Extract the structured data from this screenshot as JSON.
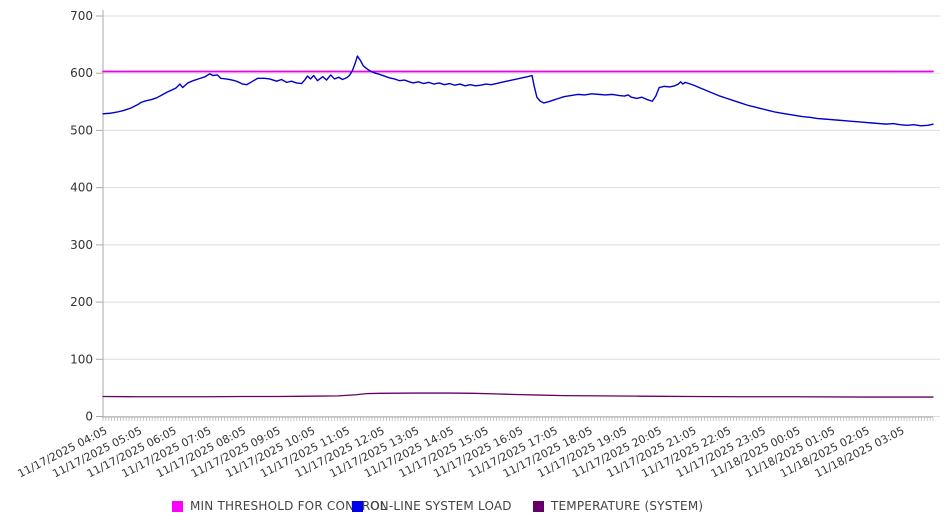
{
  "chart_data": {
    "type": "line",
    "title": "",
    "xlabel": "",
    "ylabel": "",
    "ylim": [
      0,
      700
    ],
    "y_ticks": [
      0,
      100,
      200,
      300,
      400,
      500,
      600,
      700
    ],
    "grid": "horizontal",
    "legend_position": "bottom",
    "x_tick_labels": [
      "11/17/2025 04:05",
      "11/17/2025 05:05",
      "11/17/2025 06:05",
      "11/17/2025 07:05",
      "11/17/2025 08:05",
      "11/17/2025 09:05",
      "11/17/2025 10:05",
      "11/17/2025 11:05",
      "11/17/2025 12:05",
      "11/17/2025 13:05",
      "11/17/2025 14:05",
      "11/17/2025 15:05",
      "11/17/2025 16:05",
      "11/17/2025 17:05",
      "11/17/2025 18:05",
      "11/17/2025 19:05",
      "11/17/2025 20:05",
      "11/17/2025 21:05",
      "11/17/2025 22:05",
      "11/17/2025 23:05",
      "11/18/2025 00:05",
      "11/18/2025 01:05",
      "11/18/2025 02:05",
      "11/18/2025 03:05"
    ],
    "x_unit": "hours since 11/17/2025 04:05",
    "series": [
      {
        "name": "MIN THRESHOLD FOR CONTROL",
        "color": "#ee00ee",
        "legend_color": "#ff00ff",
        "width": 1.8,
        "points": [
          [
            0,
            603
          ],
          [
            23.95,
            603
          ]
        ]
      },
      {
        "name": "ON-LINE SYSTEM LOAD",
        "color": "#0000cc",
        "legend_color": "#0000ee",
        "width": 1.4,
        "points": [
          [
            0.0,
            529
          ],
          [
            0.2,
            530
          ],
          [
            0.4,
            532
          ],
          [
            0.6,
            535
          ],
          [
            0.8,
            539
          ],
          [
            1.0,
            545
          ],
          [
            1.1,
            549
          ],
          [
            1.25,
            552
          ],
          [
            1.4,
            554
          ],
          [
            1.55,
            557
          ],
          [
            1.7,
            562
          ],
          [
            1.85,
            567
          ],
          [
            2.0,
            571
          ],
          [
            2.1,
            574
          ],
          [
            2.22,
            581
          ],
          [
            2.3,
            575
          ],
          [
            2.45,
            583
          ],
          [
            2.6,
            587
          ],
          [
            2.8,
            591
          ],
          [
            2.95,
            594
          ],
          [
            3.08,
            599
          ],
          [
            3.17,
            596
          ],
          [
            3.3,
            597
          ],
          [
            3.4,
            591
          ],
          [
            3.55,
            590
          ],
          [
            3.66,
            589
          ],
          [
            3.8,
            587
          ],
          [
            3.89,
            585
          ],
          [
            4.03,
            581
          ],
          [
            4.15,
            580
          ],
          [
            4.29,
            585
          ],
          [
            4.46,
            591
          ],
          [
            4.66,
            591
          ],
          [
            4.81,
            590
          ],
          [
            5.01,
            586
          ],
          [
            5.15,
            589
          ],
          [
            5.3,
            584
          ],
          [
            5.44,
            586
          ],
          [
            5.58,
            583
          ],
          [
            5.73,
            582
          ],
          [
            5.82,
            588
          ],
          [
            5.9,
            595
          ],
          [
            5.99,
            590
          ],
          [
            6.08,
            596
          ],
          [
            6.19,
            587
          ],
          [
            6.34,
            594
          ],
          [
            6.45,
            588
          ],
          [
            6.57,
            597
          ],
          [
            6.68,
            590
          ],
          [
            6.8,
            593
          ],
          [
            6.91,
            589
          ],
          [
            7.03,
            592
          ],
          [
            7.11,
            596
          ],
          [
            7.2,
            605
          ],
          [
            7.28,
            618
          ],
          [
            7.34,
            630
          ],
          [
            7.43,
            622
          ],
          [
            7.51,
            613
          ],
          [
            7.63,
            607
          ],
          [
            7.74,
            603
          ],
          [
            7.86,
            600
          ],
          [
            7.98,
            598
          ],
          [
            8.12,
            595
          ],
          [
            8.26,
            592
          ],
          [
            8.41,
            590
          ],
          [
            8.55,
            587
          ],
          [
            8.7,
            588
          ],
          [
            8.84,
            585
          ],
          [
            8.95,
            583
          ],
          [
            9.1,
            585
          ],
          [
            9.25,
            582
          ],
          [
            9.4,
            584
          ],
          [
            9.55,
            581
          ],
          [
            9.7,
            583
          ],
          [
            9.85,
            580
          ],
          [
            10.0,
            582
          ],
          [
            10.15,
            579
          ],
          [
            10.3,
            581
          ],
          [
            10.45,
            578
          ],
          [
            10.6,
            580
          ],
          [
            10.75,
            578
          ],
          [
            10.9,
            579
          ],
          [
            11.05,
            581
          ],
          [
            11.2,
            580
          ],
          [
            11.35,
            582
          ],
          [
            11.5,
            584
          ],
          [
            11.65,
            586
          ],
          [
            11.8,
            588
          ],
          [
            11.95,
            590
          ],
          [
            12.1,
            592
          ],
          [
            12.25,
            594
          ],
          [
            12.38,
            596
          ],
          [
            12.44,
            578
          ],
          [
            12.52,
            558
          ],
          [
            12.62,
            551
          ],
          [
            12.72,
            548
          ],
          [
            12.85,
            550
          ],
          [
            13.0,
            553
          ],
          [
            13.15,
            556
          ],
          [
            13.3,
            559
          ],
          [
            13.5,
            561
          ],
          [
            13.7,
            563
          ],
          [
            13.9,
            562
          ],
          [
            14.1,
            564
          ],
          [
            14.3,
            563
          ],
          [
            14.5,
            562
          ],
          [
            14.7,
            563
          ],
          [
            14.9,
            561
          ],
          [
            15.05,
            560
          ],
          [
            15.15,
            562
          ],
          [
            15.25,
            558
          ],
          [
            15.4,
            556
          ],
          [
            15.55,
            558
          ],
          [
            15.7,
            554
          ],
          [
            15.85,
            551
          ],
          [
            15.95,
            560
          ],
          [
            16.05,
            575
          ],
          [
            16.2,
            577
          ],
          [
            16.35,
            576
          ],
          [
            16.5,
            578
          ],
          [
            16.6,
            581
          ],
          [
            16.67,
            585
          ],
          [
            16.73,
            581
          ],
          [
            16.8,
            584
          ],
          [
            16.9,
            582
          ],
          [
            17.05,
            579
          ],
          [
            17.2,
            575
          ],
          [
            17.4,
            570
          ],
          [
            17.6,
            565
          ],
          [
            17.8,
            560
          ],
          [
            18.0,
            556
          ],
          [
            18.2,
            552
          ],
          [
            18.4,
            548
          ],
          [
            18.6,
            544
          ],
          [
            18.8,
            541
          ],
          [
            19.0,
            538
          ],
          [
            19.2,
            535
          ],
          [
            19.4,
            532
          ],
          [
            19.6,
            530
          ],
          [
            19.8,
            528
          ],
          [
            20.0,
            526
          ],
          [
            20.2,
            524
          ],
          [
            20.4,
            523
          ],
          [
            20.6,
            521
          ],
          [
            20.8,
            520
          ],
          [
            21.0,
            519
          ],
          [
            21.2,
            518
          ],
          [
            21.4,
            517
          ],
          [
            21.6,
            516
          ],
          [
            21.8,
            515
          ],
          [
            22.0,
            514
          ],
          [
            22.2,
            513
          ],
          [
            22.4,
            512
          ],
          [
            22.6,
            511
          ],
          [
            22.8,
            512
          ],
          [
            23.0,
            510
          ],
          [
            23.2,
            509
          ],
          [
            23.4,
            510
          ],
          [
            23.6,
            508
          ],
          [
            23.8,
            509
          ],
          [
            23.95,
            511
          ]
        ]
      },
      {
        "name": "TEMPERATURE (SYSTEM)",
        "color": "#660066",
        "legend_color": "#660066",
        "width": 1.3,
        "points": [
          [
            0.0,
            35
          ],
          [
            1.0,
            34.5
          ],
          [
            2.0,
            34.5
          ],
          [
            3.0,
            34.5
          ],
          [
            4.0,
            35
          ],
          [
            5.0,
            35
          ],
          [
            6.0,
            35.5
          ],
          [
            6.8,
            36
          ],
          [
            7.3,
            38
          ],
          [
            7.6,
            40
          ],
          [
            8.0,
            40.5
          ],
          [
            9.0,
            41
          ],
          [
            10.0,
            41
          ],
          [
            10.7,
            40.5
          ],
          [
            11.3,
            39.5
          ],
          [
            11.9,
            38.5
          ],
          [
            12.6,
            37.5
          ],
          [
            13.3,
            36.5
          ],
          [
            14.3,
            36
          ],
          [
            15.5,
            35.5
          ],
          [
            17.0,
            35
          ],
          [
            18.5,
            34.5
          ],
          [
            20.0,
            34.5
          ],
          [
            22.0,
            34
          ],
          [
            23.95,
            34
          ]
        ]
      }
    ],
    "style": {
      "gridline_color": "#dddddd",
      "axis_color": "#aaaaaa",
      "minor_tick_color": "#b3b3b3",
      "tick_label_color": "#333333",
      "background": "#ffffff"
    }
  }
}
